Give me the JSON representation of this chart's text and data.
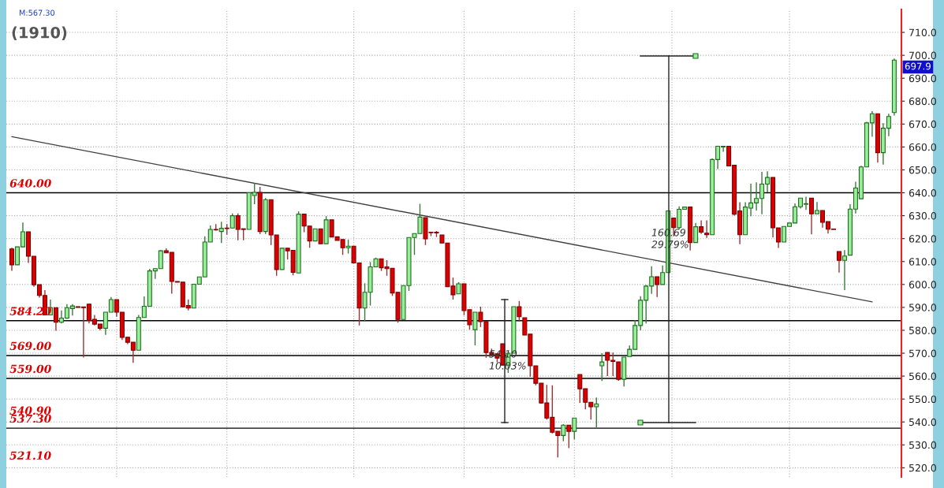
{
  "chart_data": {
    "type": "candlestick",
    "title": "(1910)",
    "categories": [
      null,
      null,
      null,
      null,
      null,
      null,
      null,
      null,
      null,
      null,
      null,
      null,
      null,
      null,
      null,
      null,
      null,
      null,
      null,
      null,
      null,
      null,
      null,
      null,
      null,
      null,
      null,
      null,
      null,
      null,
      null,
      null,
      null,
      null,
      null,
      null,
      null,
      null,
      null,
      null,
      null,
      null,
      null,
      null,
      null,
      null,
      null,
      null,
      null,
      null,
      null,
      null,
      null,
      null,
      null,
      null,
      null,
      null,
      null,
      null,
      null,
      null,
      null,
      null,
      null,
      null,
      null,
      null,
      null,
      null,
      null,
      null,
      null,
      null,
      null,
      null,
      null,
      null,
      null,
      null,
      null,
      null,
      null,
      null,
      null,
      null,
      null,
      null,
      null,
      null,
      null,
      null,
      null,
      null,
      null,
      null,
      null,
      null,
      null,
      null,
      null,
      null,
      null,
      null,
      null,
      null,
      null,
      null,
      null,
      null,
      null,
      null,
      null,
      null,
      null,
      null,
      null,
      null,
      null,
      null,
      null,
      null,
      null,
      null,
      null,
      null,
      null,
      null,
      null,
      null,
      null,
      null,
      null,
      null,
      null,
      null,
      null,
      null,
      null,
      null,
      null,
      null,
      null,
      null,
      null,
      null,
      null,
      null,
      null,
      null,
      null,
      null,
      null,
      null,
      null,
      null,
      null,
      null,
      null,
      null,
      null
    ],
    "ohlc": [
      [
        615.5,
        616,
        606,
        608.6
      ],
      [
        608.6,
        616.4,
        608.6,
        616.4
      ],
      [
        616.4,
        627,
        616.4,
        623
      ],
      [
        623,
        623,
        609.4,
        612.3
      ],
      [
        612.3,
        612.3,
        599,
        599.9
      ],
      [
        599.9,
        599.9,
        594.3,
        595.2
      ],
      [
        595.2,
        597.5,
        586.7,
        586.7
      ],
      [
        586.7,
        593.4,
        586.7,
        589.9
      ],
      [
        589.9,
        589.9,
        579.8,
        583.5
      ],
      [
        583.5,
        588.7,
        583,
        585.3
      ],
      [
        585.3,
        591.4,
        585,
        589.9
      ],
      [
        589.5,
        591.4,
        586.4,
        590.6
      ],
      [
        590.3,
        590.3,
        590,
        590
      ],
      [
        590.2,
        590.2,
        568.1,
        589.9
      ],
      [
        591.4,
        591.6,
        583,
        584.3
      ],
      [
        584.8,
        586.7,
        582.1,
        582.7
      ],
      [
        582.7,
        582.7,
        580,
        580.9
      ],
      [
        580.9,
        587.9,
        578,
        587.9
      ],
      [
        587.9,
        594.5,
        587.9,
        593.4
      ],
      [
        593.4,
        593.4,
        585.9,
        587.9
      ],
      [
        587.9,
        587.9,
        575.8,
        576.9
      ],
      [
        577,
        577,
        574,
        574.8
      ],
      [
        574.8,
        574.8,
        565.8,
        571.3
      ],
      [
        571.3,
        586.7,
        571.3,
        585.6
      ],
      [
        585.6,
        594.8,
        585.6,
        590.5
      ],
      [
        590.5,
        606.8,
        590.5,
        605.9
      ],
      [
        605.9,
        607,
        602.4,
        606.9
      ],
      [
        606.9,
        615,
        606.9,
        614.7
      ],
      [
        614.7,
        615.8,
        613.8,
        613.8
      ],
      [
        614,
        614,
        596,
        601.3
      ],
      [
        601.3,
        601.3,
        601,
        601
      ],
      [
        601,
        601,
        590.2,
        590.2
      ],
      [
        590.8,
        593.4,
        588.7,
        589.7
      ],
      [
        589.7,
        600.1,
        589.7,
        600.1
      ],
      [
        600.1,
        603.3,
        600.1,
        603.3
      ],
      [
        603.3,
        621,
        603.3,
        618.5
      ],
      [
        618.5,
        625.7,
        618.5,
        624
      ],
      [
        624,
        626.3,
        623.5,
        623.8
      ],
      [
        623.1,
        627.4,
        618.1,
        624.5
      ],
      [
        624.6,
        626.3,
        621.7,
        624.4
      ],
      [
        624.6,
        631,
        624.6,
        630
      ],
      [
        630,
        631,
        619.3,
        624
      ],
      [
        624.3,
        624.3,
        619.3,
        624
      ],
      [
        624,
        640,
        624,
        640
      ],
      [
        638.8,
        644.3,
        635,
        640.2
      ],
      [
        640.2,
        642.6,
        622,
        623.1
      ],
      [
        623.1,
        637.7,
        622,
        637
      ],
      [
        637,
        637,
        617.2,
        621.6
      ],
      [
        621.6,
        621.6,
        603.8,
        606.5
      ],
      [
        606.5,
        616,
        606.5,
        615.8
      ],
      [
        615.8,
        615.8,
        610.9,
        614.7
      ],
      [
        614.9,
        614.9,
        604,
        605.3
      ],
      [
        605,
        631.9,
        605,
        630.7
      ],
      [
        630.7,
        630.7,
        622.8,
        625.5
      ],
      [
        625.5,
        625.5,
        616,
        619
      ],
      [
        619,
        624.3,
        619,
        624.3
      ],
      [
        624.3,
        624.3,
        617.8,
        617.8
      ],
      [
        617.8,
        629.8,
        617.8,
        628.2
      ],
      [
        628.2,
        628.2,
        620.7,
        620.7
      ],
      [
        620.8,
        620.8,
        619.2,
        619.2
      ],
      [
        619.6,
        619.6,
        612.9,
        616
      ],
      [
        616,
        619.6,
        613.5,
        616.7
      ],
      [
        616.7,
        616.7,
        609.4,
        609.4
      ],
      [
        609.4,
        609.4,
        582.1,
        589.7
      ],
      [
        589.7,
        600.5,
        584,
        596.6
      ],
      [
        596.6,
        609.8,
        590.8,
        607.7
      ],
      [
        607.7,
        611.7,
        607.7,
        611.2
      ],
      [
        611.2,
        611.2,
        605.9,
        607.3
      ],
      [
        607.7,
        610.6,
        603.8,
        606.9
      ],
      [
        607.1,
        607.1,
        595,
        596.3
      ],
      [
        596.6,
        596.6,
        583.3,
        584.7
      ],
      [
        584.7,
        599.5,
        584.7,
        599.5
      ],
      [
        599.5,
        620.5,
        597.2,
        620.5
      ],
      [
        620.5,
        622.2,
        612.9,
        622.2
      ],
      [
        622.2,
        635.2,
        622.2,
        629.4
      ],
      [
        629.2,
        629.2,
        617.2,
        619.9
      ],
      [
        622.8,
        622.8,
        621.1,
        622.6
      ],
      [
        622.8,
        623.3,
        620.7,
        622.5
      ],
      [
        621.6,
        621.6,
        618.1,
        618.1
      ],
      [
        618.1,
        618.1,
        599,
        599
      ],
      [
        599.3,
        603,
        593.4,
        595.5
      ],
      [
        595.9,
        601,
        595.9,
        600.3
      ],
      [
        600.3,
        600.3,
        586.6,
        588.6
      ],
      [
        589,
        589,
        580.3,
        582.4
      ],
      [
        580.3,
        587.9,
        573.4,
        587.9
      ],
      [
        587.9,
        590.3,
        581.4,
        583.8
      ],
      [
        583.8,
        583.8,
        568,
        570.3
      ],
      [
        570.3,
        572,
        569,
        569.5
      ],
      [
        569.7,
        569.7,
        566,
        567.9
      ],
      [
        574.1,
        574.1,
        564.8,
        564.8
      ],
      [
        564.8,
        570,
        561.4,
        570
      ],
      [
        570,
        590.3,
        570,
        590.3
      ],
      [
        590.3,
        592.8,
        583.8,
        585.9
      ],
      [
        585.5,
        585.5,
        577.9,
        577.9
      ],
      [
        578.3,
        578.3,
        559.7,
        564.5
      ],
      [
        564.5,
        564.5,
        556,
        556.9
      ],
      [
        556.9,
        556.9,
        548,
        548.3
      ],
      [
        548.3,
        556.2,
        541,
        541.7
      ],
      [
        542,
        556,
        535,
        535.5
      ],
      [
        535.9,
        535.9,
        524.5,
        534.1
      ],
      [
        534.1,
        539,
        531.6,
        538.6
      ],
      [
        538.6,
        538.6,
        528.6,
        535.9
      ],
      [
        535.9,
        541.7,
        532.4,
        541.7
      ],
      [
        560.7,
        560.7,
        548.3,
        554.5
      ],
      [
        554.5,
        554.5,
        545.5,
        548.6
      ],
      [
        548.6,
        548.6,
        541,
        546.6
      ],
      [
        546.6,
        550.7,
        537.6,
        547.9
      ],
      [
        564.5,
        570,
        557.9,
        566.2
      ],
      [
        570.3,
        570.3,
        560,
        566.9
      ],
      [
        566.9,
        570.3,
        560,
        566.4
      ],
      [
        566.2,
        566.2,
        558,
        558.6
      ],
      [
        558.6,
        568.3,
        555.5,
        568.3
      ],
      [
        568.6,
        573.4,
        568.6,
        571.7
      ],
      [
        571.7,
        584.5,
        571.7,
        582.1
      ],
      [
        582.1,
        594.9,
        580,
        593.1
      ],
      [
        593.1,
        599.8,
        583,
        599.3
      ],
      [
        599.3,
        607.9,
        595.9,
        603.4
      ],
      [
        603.4,
        603.4,
        594.5,
        600
      ],
      [
        600,
        608.3,
        600,
        605.2
      ],
      [
        605.2,
        632.1,
        605.2,
        632.1
      ],
      [
        629,
        629,
        621,
        624.8
      ],
      [
        624.8,
        634.1,
        624,
        632.8
      ],
      [
        632.8,
        634,
        632.8,
        633.8
      ],
      [
        633.8,
        633.8,
        614.8,
        618.3
      ],
      [
        618.3,
        626.9,
        618.3,
        625.2
      ],
      [
        625.2,
        628,
        622,
        622.8
      ],
      [
        622.4,
        628,
        620.3,
        621.7
      ],
      [
        621.7,
        655,
        621.7,
        654.5
      ],
      [
        654.5,
        660.3,
        650.3,
        660.3
      ],
      [
        660,
        660.3,
        657.9,
        660.3
      ],
      [
        660.3,
        660.3,
        651.7,
        651.7
      ],
      [
        652,
        652,
        630,
        630.7
      ],
      [
        632.1,
        635.9,
        617.6,
        621.7
      ],
      [
        621.7,
        635.9,
        621.7,
        633.8
      ],
      [
        633.3,
        644,
        629.8,
        635.6
      ],
      [
        635.6,
        644.6,
        632.3,
        637.5
      ],
      [
        637.5,
        649.1,
        630.6,
        643.8
      ],
      [
        643.8,
        649.4,
        640.2,
        646.7
      ],
      [
        646.7,
        646.7,
        620.5,
        624.7
      ],
      [
        624.7,
        624.7,
        615.9,
        618.5
      ],
      [
        618.5,
        625.3,
        618.5,
        625.3
      ],
      [
        625.3,
        626.8,
        625.3,
        626.8
      ],
      [
        626.8,
        635.4,
        626.8,
        633.9
      ],
      [
        633.9,
        637.7,
        633.1,
        637.7
      ],
      [
        635,
        638.3,
        632.5,
        635
      ],
      [
        637.7,
        637.7,
        621.9,
        630.8
      ],
      [
        630.8,
        636,
        630.8,
        632.3
      ],
      [
        632.3,
        632.3,
        624.8,
        627.1
      ],
      [
        627.4,
        627.4,
        622.2,
        624.1
      ],
      [
        624.2,
        624.2,
        624,
        624
      ],
      [
        614.4,
        614.4,
        605.2,
        610.5
      ],
      [
        610.5,
        615,
        597.5,
        612.4
      ],
      [
        612.8,
        635,
        612.8,
        632.9
      ],
      [
        632.9,
        644.8,
        631,
        642.1
      ],
      [
        637.4,
        651.8,
        637.4,
        651.3
      ],
      [
        651.3,
        671,
        651.3,
        670.5
      ],
      [
        670.5,
        675.6,
        664.4,
        674.5
      ],
      [
        674.5,
        674.5,
        653.2,
        657.5
      ],
      [
        657.5,
        670.4,
        652.3,
        668.2
      ],
      [
        668.2,
        674.5,
        664.7,
        673.3
      ],
      [
        675,
        698.6,
        673.7,
        697.9
      ]
    ],
    "series": [
      {
        "type": "line",
        "color": "#404040",
        "values": [
          664.5,
          null,
          null,
          null,
          null,
          null,
          null,
          null,
          null,
          null,
          null,
          null,
          null,
          null,
          null,
          null,
          null,
          null,
          null,
          null,
          null,
          null,
          null,
          null,
          null,
          null,
          null,
          null,
          null,
          null,
          null,
          null,
          null,
          null,
          null,
          null,
          null,
          null,
          null,
          null,
          null,
          null,
          null,
          null,
          null,
          null,
          null,
          null,
          null,
          null,
          null,
          null,
          null,
          null,
          null,
          null,
          null,
          null,
          null,
          null,
          null,
          null,
          null,
          null,
          null,
          null,
          null,
          null,
          null,
          null,
          null,
          null,
          null,
          null,
          null,
          null,
          null,
          null,
          null,
          null,
          null,
          null,
          null,
          null,
          null,
          null,
          null,
          null,
          null,
          null,
          null,
          null,
          null,
          null,
          null,
          null,
          null,
          null,
          null,
          null,
          null,
          null,
          null,
          null,
          null,
          null,
          null,
          null,
          null,
          null,
          null,
          null,
          null,
          null,
          null,
          null,
          null,
          null,
          null,
          null,
          null,
          null,
          null,
          null,
          null,
          null,
          null,
          null,
          null,
          null,
          null,
          null,
          null,
          null,
          null,
          null,
          null,
          null,
          null,
          null,
          null,
          null,
          null,
          null,
          null,
          null,
          null,
          null,
          null,
          null,
          null,
          null,
          null,
          null,
          null,
          null,
          592.4,
          null,
          null,
          null,
          null
        ]
      }
    ],
    "ylim": [
      516,
      720
    ],
    "yticks": [
      {
        "value": 520,
        "label": "520.0"
      },
      {
        "value": 530,
        "label": "530.0"
      },
      {
        "value": 540,
        "label": "540.0"
      },
      {
        "value": 550,
        "label": "550.0"
      },
      {
        "value": 560,
        "label": "560.0"
      },
      {
        "value": 570,
        "label": "570.0"
      },
      {
        "value": 580,
        "label": "580.0"
      },
      {
        "value": 590,
        "label": "590.0"
      },
      {
        "value": 600,
        "label": "600.0"
      },
      {
        "value": 610,
        "label": "610.0"
      },
      {
        "value": 620,
        "label": "620.0"
      },
      {
        "value": 630,
        "label": "630.0"
      },
      {
        "value": 640,
        "label": "640.0"
      },
      {
        "value": 650,
        "label": "650.0"
      },
      {
        "value": 660,
        "label": "660.0"
      },
      {
        "value": 670,
        "label": "670.0"
      },
      {
        "value": 680,
        "label": "680.0"
      },
      {
        "value": 690,
        "label": "690.0"
      },
      {
        "value": 700,
        "label": "700.0"
      },
      {
        "value": 710,
        "label": "710.0"
      }
    ],
    "ref_lines": [
      {
        "axis": "y",
        "value": 640,
        "label": "640.00",
        "color": "#000000"
      },
      {
        "axis": "y",
        "value": 584.2,
        "label": "584.20",
        "color": "#000000"
      },
      {
        "axis": "y",
        "value": 569,
        "label": "569.00",
        "color": "#000000"
      },
      {
        "axis": "y",
        "value": 559,
        "label": "559.00",
        "color": "#000000"
      },
      {
        "axis": "y",
        "value": 537.3,
        "label": "537.30",
        "color": "#000000"
      }
    ],
    "annotations": [
      "M:567.30",
      "697.9",
      "160.69",
      "29.79%",
      "54.10",
      "10.03%",
      "540.90",
      "521.10"
    ],
    "grid": true,
    "tick_labels": "y"
  }
}
